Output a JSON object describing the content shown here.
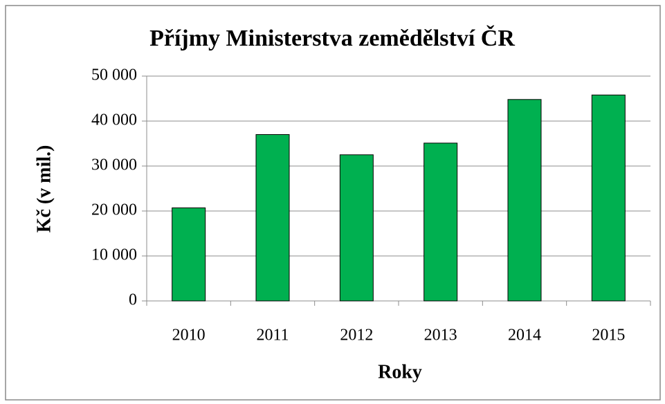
{
  "chart_data": {
    "type": "bar",
    "title": "Příjmy Ministerstva  zemědělství ČR",
    "x_label": "Roky",
    "y_label": "Kč (v mil.)",
    "categories": [
      "2010",
      "2011",
      "2012",
      "2013",
      "2014",
      "2015"
    ],
    "values": [
      20700,
      37000,
      32500,
      35100,
      44800,
      45800
    ],
    "color": "#00b050",
    "ylim": [
      0,
      50000
    ],
    "yticks": [
      0,
      {
        "value": 10000,
        "label": "10 000"
      },
      {
        "value": 20000,
        "label": "20 000"
      },
      {
        "value": 30000,
        "label": "30 000"
      },
      {
        "value": 40000,
        "label": "40 000"
      },
      {
        "value": 50000,
        "label": "50 000"
      }
    ],
    "grid": true
  }
}
